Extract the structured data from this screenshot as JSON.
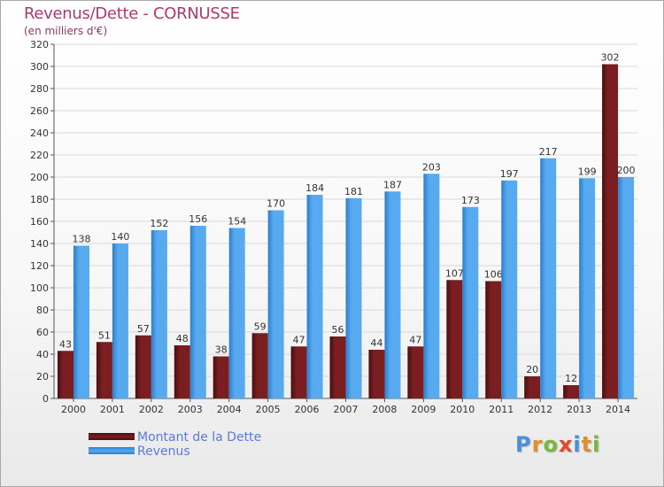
{
  "title": "Revenus/Dette - CORNUSSE",
  "subtitle": "(en milliers d'€)",
  "legend": {
    "debt_label": "Montant de la Dette",
    "revenue_label": "Revenus"
  },
  "logo": {
    "text": "Proxiti",
    "letters": [
      {
        "char": "P",
        "color": "#4a8fd8"
      },
      {
        "char": "r",
        "color": "#e0902a"
      },
      {
        "char": "o",
        "color": "#7ab83a"
      },
      {
        "char": "x",
        "color": "#e04a2a"
      },
      {
        "char": "i",
        "color": "#4a8fd8"
      },
      {
        "char": "t",
        "color": "#e0902a"
      },
      {
        "char": "i",
        "color": "#7ab83a"
      }
    ]
  },
  "colors": {
    "debt": "#7a1e22",
    "debt_dark": "#4a0e10",
    "revenue": "#58aaf0",
    "revenue_dark": "#2a7ecc",
    "grid": "#d9d9d9",
    "axis": "#555555",
    "title": "#b0386d"
  },
  "chart_data": {
    "type": "bar",
    "title": "Revenus/Dette - CORNUSSE",
    "ylabel": "(en milliers d'€)",
    "categories": [
      "2000",
      "2001",
      "2002",
      "2003",
      "2004",
      "2005",
      "2006",
      "2007",
      "2008",
      "2009",
      "2010",
      "2011",
      "2012",
      "2013",
      "2014"
    ],
    "series": [
      {
        "name": "Montant de la Dette",
        "values": [
          43,
          51,
          57,
          48,
          38,
          59,
          47,
          56,
          44,
          47,
          107,
          106,
          20,
          12,
          302
        ]
      },
      {
        "name": "Revenus",
        "values": [
          138,
          140,
          152,
          156,
          154,
          170,
          184,
          181,
          187,
          203,
          173,
          197,
          217,
          199,
          200
        ]
      }
    ],
    "ylim": [
      0,
      320
    ],
    "yticks": [
      0,
      20,
      40,
      60,
      80,
      100,
      120,
      140,
      160,
      180,
      200,
      220,
      240,
      260,
      280,
      300,
      320
    ],
    "grid": true,
    "legend_position": "bottom-left"
  }
}
